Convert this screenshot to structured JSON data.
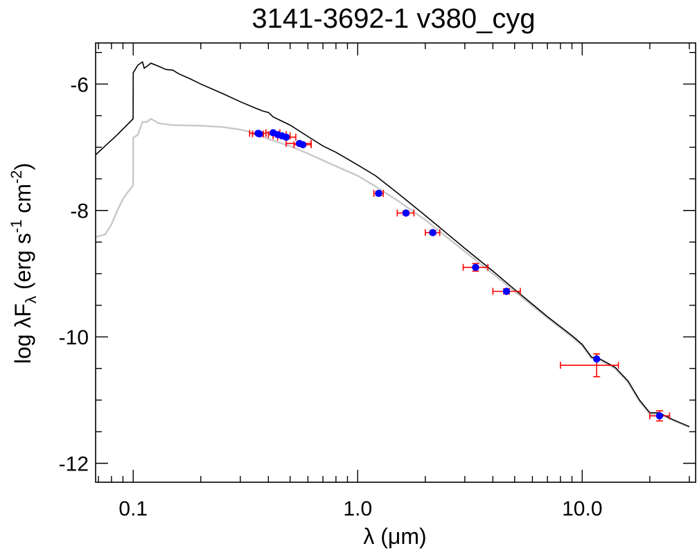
{
  "chart_data": {
    "type": "scatter",
    "title": "3141-3692-1   v380_cyg",
    "xlabel": "λ (μm)",
    "ylabel": {
      "prefix": "log λF",
      "sub": "λ",
      "mid": " (erg s",
      "sup1": "-1",
      "mid2": " cm",
      "sup2": "-2",
      "suffix": ")"
    },
    "xscale": "log",
    "xlim": [
      0.068,
      32
    ],
    "ylim": [
      -12.3,
      -5.35
    ],
    "xticks": [
      {
        "value": 0.1,
        "label": "0.1"
      },
      {
        "value": 1.0,
        "label": "1.0"
      },
      {
        "value": 10.0,
        "label": "10.0"
      }
    ],
    "yticks": [
      {
        "value": -6,
        "label": "-6"
      },
      {
        "value": -8,
        "label": "-8"
      },
      {
        "value": -10,
        "label": "-10"
      },
      {
        "value": -12,
        "label": "-12"
      }
    ],
    "grid": false,
    "colors": {
      "points": "#0000ff",
      "errorbars": "#ff0000",
      "model": "#000000",
      "model_reddened": "#c8c8c8"
    },
    "series": [
      {
        "kind": "model_curve",
        "color": "#000000",
        "x": [
          0.068,
          0.075,
          0.085,
          0.0999,
          0.1,
          0.105,
          0.11,
          0.112,
          0.12,
          0.13,
          0.14,
          0.15,
          0.16,
          0.18,
          0.2,
          0.25,
          0.3,
          0.35,
          0.38,
          0.4,
          0.42,
          0.5,
          0.6,
          0.7,
          0.8,
          1.0,
          1.2,
          1.5,
          2.0,
          3.0,
          4.0,
          5.0,
          7.0,
          9.0,
          10.0,
          11.0,
          12.0,
          14.0,
          16.0,
          18.0,
          20.0,
          22.0,
          25.0,
          30.0
        ],
        "y": [
          -7.12,
          -6.98,
          -6.8,
          -6.55,
          -5.82,
          -5.7,
          -5.65,
          -5.75,
          -5.67,
          -5.72,
          -5.77,
          -5.78,
          -5.84,
          -5.92,
          -6.0,
          -6.15,
          -6.28,
          -6.38,
          -6.43,
          -6.45,
          -6.52,
          -6.65,
          -6.83,
          -6.98,
          -7.08,
          -7.28,
          -7.45,
          -7.72,
          -8.08,
          -8.6,
          -8.96,
          -9.25,
          -9.68,
          -9.98,
          -10.12,
          -10.32,
          -10.35,
          -10.48,
          -10.7,
          -11.0,
          -11.2,
          -11.2,
          -11.3,
          -11.42
        ]
      },
      {
        "kind": "model_curve_reddened",
        "color": "#c8c8c8",
        "x": [
          0.068,
          0.075,
          0.08,
          0.085,
          0.09,
          0.095,
          0.0999,
          0.1,
          0.105,
          0.11,
          0.115,
          0.12,
          0.13,
          0.15,
          0.2,
          0.25,
          0.3,
          0.35,
          0.4,
          0.45,
          0.5,
          0.6,
          0.8,
          1.0,
          1.2,
          1.5,
          2.0,
          3.0,
          4.0,
          5.0,
          7.0,
          9.0,
          10.0,
          11.0,
          12.0,
          14.0,
          16.0,
          18.0,
          20.0,
          22.0,
          25.0,
          30.0
        ],
        "y": [
          -8.42,
          -8.38,
          -8.22,
          -8.0,
          -7.82,
          -7.7,
          -7.6,
          -6.85,
          -6.8,
          -6.6,
          -6.6,
          -6.55,
          -6.62,
          -6.65,
          -6.66,
          -6.68,
          -6.72,
          -6.78,
          -6.87,
          -6.93,
          -6.98,
          -7.1,
          -7.3,
          -7.45,
          -7.62,
          -7.84,
          -8.15,
          -8.65,
          -9.0,
          -9.28,
          -9.7,
          -10.0,
          -10.14,
          -10.34,
          -10.37,
          -10.5,
          -10.72,
          -11.02,
          -11.22,
          -11.22,
          -11.31,
          -11.43
        ]
      },
      {
        "kind": "photometry",
        "name": "",
        "points": [
          {
            "x": 0.36,
            "y": -6.78,
            "xerr": [
              0.33,
              0.39
            ],
            "yerr": 0.02
          },
          {
            "x": 0.365,
            "y": -6.79,
            "xerr": [
              0.34,
              0.38
            ],
            "yerr": 0.02
          },
          {
            "x": 0.42,
            "y": -6.77,
            "xerr": [
              0.39,
              0.45
            ],
            "yerr": 0.02
          },
          {
            "x": 0.44,
            "y": -6.8,
            "xerr": [
              0.4,
              0.48
            ],
            "yerr": 0.02
          },
          {
            "x": 0.46,
            "y": -6.82,
            "xerr": [
              0.42,
              0.5
            ],
            "yerr": 0.02
          },
          {
            "x": 0.48,
            "y": -6.84,
            "xerr": [
              0.44,
              0.53
            ],
            "yerr": 0.02
          },
          {
            "x": 0.55,
            "y": -6.94,
            "xerr": [
              0.48,
              0.62
            ],
            "yerr": 0.02
          },
          {
            "x": 0.57,
            "y": -6.96,
            "xerr": [
              0.52,
              0.62
            ],
            "yerr": 0.02
          },
          {
            "x": 1.24,
            "y": -7.73,
            "xerr": [
              1.18,
              1.3
            ],
            "yerr": 0.03
          },
          {
            "x": 1.64,
            "y": -8.04,
            "xerr": [
              1.5,
              1.78
            ],
            "yerr": 0.03
          },
          {
            "x": 2.16,
            "y": -8.35,
            "xerr": [
              2.0,
              2.32
            ],
            "yerr": 0.03
          },
          {
            "x": 3.35,
            "y": -8.9,
            "xerr": [
              2.95,
              3.8
            ],
            "yerr": 0.06
          },
          {
            "x": 4.6,
            "y": -9.28,
            "xerr": [
              4.0,
              5.3
            ],
            "yerr": 0.04
          },
          {
            "x": 11.6,
            "y": -10.35,
            "xerr": [
              8.0,
              14.5
            ],
            "yerr": 0.18,
            "y_errbar_center": -10.45
          },
          {
            "x": 22.1,
            "y": -11.25,
            "xerr": [
              20.0,
              24.5
            ],
            "yerr": 0.08
          }
        ]
      }
    ]
  }
}
